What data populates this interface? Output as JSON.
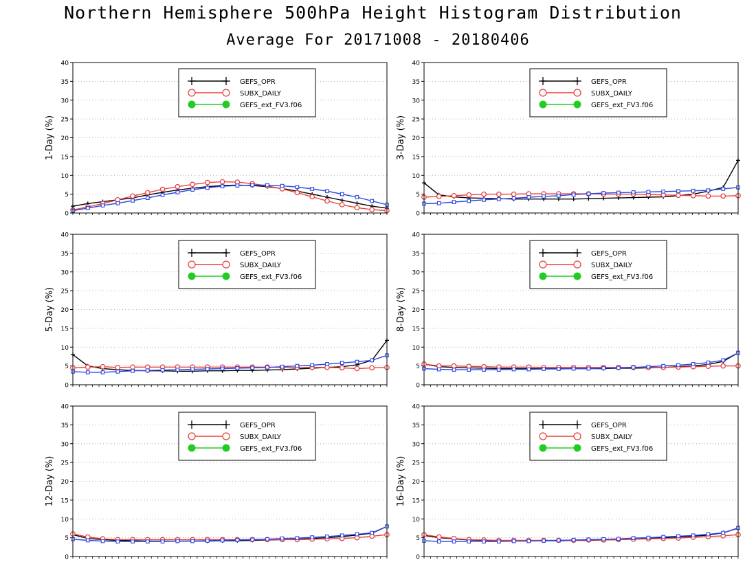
{
  "title": "Northern Hemisphere 500hPa Height Histogram Distribution",
  "subtitle": "Average For 20171008 - 20180406",
  "colors": {
    "GEFS_OPR": "#000000",
    "SUBX_DAILY": "#e8403c",
    "GEFS_ext_FV3.f06": "#2a44e0",
    "legend_green": "#22cc22"
  },
  "legend": [
    {
      "label": "GEFS_OPR",
      "icon": "plus-marker-icon"
    },
    {
      "label": "SUBX_DAILY",
      "icon": "open-circle-marker-icon"
    },
    {
      "label": "GEFS_ext_FV3.f06",
      "icon": "filled-circle-marker-icon"
    }
  ],
  "chart_data": [
    {
      "type": "line",
      "ylabel": "1-Day (%)",
      "ylim": [
        0,
        40
      ],
      "yticks": [
        "0",
        "5",
        "10",
        "15",
        "20",
        "25",
        "30",
        "35",
        "40"
      ],
      "grid": true,
      "legend_position": "top-center",
      "series": [
        {
          "name": "GEFS_OPR",
          "values": [
            1.8,
            2.5,
            3.0,
            3.5,
            4.0,
            4.8,
            5.5,
            6.1,
            6.6,
            7.0,
            7.3,
            7.4,
            7.3,
            7.0,
            6.5,
            5.8,
            5.0,
            4.2,
            3.4,
            2.6,
            1.8,
            1.3
          ]
        },
        {
          "name": "SUBX_DAILY",
          "values": [
            0.8,
            1.6,
            2.5,
            3.5,
            4.5,
            5.4,
            6.3,
            7.0,
            7.6,
            8.1,
            8.3,
            8.2,
            7.8,
            7.2,
            6.4,
            5.4,
            4.3,
            3.2,
            2.2,
            1.4,
            0.9,
            0.6
          ]
        },
        {
          "name": "GEFS_ext_FV3.f06",
          "values": [
            0.6,
            1.3,
            2.0,
            2.6,
            3.3,
            4.0,
            4.8,
            5.5,
            6.2,
            6.7,
            7.1,
            7.3,
            7.4,
            7.4,
            7.2,
            6.9,
            6.4,
            5.8,
            5.0,
            4.2,
            3.2,
            2.2
          ]
        }
      ]
    },
    {
      "type": "line",
      "ylabel": "3-Day (%)",
      "ylim": [
        0,
        40
      ],
      "yticks": [
        "0",
        "5",
        "10",
        "15",
        "20",
        "25",
        "30",
        "35",
        "40"
      ],
      "grid": true,
      "legend_position": "top-center",
      "series": [
        {
          "name": "GEFS_OPR",
          "values": [
            8.0,
            4.8,
            4.3,
            4.0,
            3.9,
            3.8,
            3.7,
            3.7,
            3.7,
            3.7,
            3.7,
            3.8,
            3.9,
            4.0,
            4.1,
            4.2,
            4.3,
            4.6,
            5.0,
            5.8,
            6.8,
            14.0
          ]
        },
        {
          "name": "SUBX_DAILY",
          "values": [
            4.2,
            4.4,
            4.6,
            4.8,
            5.0,
            5.0,
            5.0,
            5.1,
            5.1,
            5.1,
            5.1,
            5.1,
            5.0,
            5.0,
            5.0,
            4.9,
            4.8,
            4.7,
            4.6,
            4.5,
            4.5,
            4.6
          ]
        },
        {
          "name": "GEFS_ext_FV3.f06",
          "values": [
            2.5,
            2.6,
            2.9,
            3.2,
            3.5,
            3.7,
            3.9,
            4.2,
            4.4,
            4.6,
            4.9,
            5.1,
            5.3,
            5.4,
            5.5,
            5.6,
            5.7,
            5.8,
            5.9,
            6.0,
            6.4,
            6.8
          ]
        }
      ]
    },
    {
      "type": "line",
      "ylabel": "5-Day (%)",
      "ylim": [
        0,
        40
      ],
      "yticks": [
        "0",
        "5",
        "10",
        "15",
        "20",
        "25",
        "30",
        "35",
        "40"
      ],
      "grid": true,
      "legend_position": "top-center",
      "series": [
        {
          "name": "GEFS_OPR",
          "values": [
            8.0,
            5.0,
            4.3,
            4.0,
            3.8,
            3.7,
            3.7,
            3.6,
            3.6,
            3.7,
            3.7,
            3.8,
            3.8,
            3.9,
            4.0,
            4.2,
            4.4,
            4.6,
            4.8,
            5.3,
            6.5,
            11.8
          ]
        },
        {
          "name": "SUBX_DAILY",
          "values": [
            4.5,
            4.7,
            4.8,
            4.6,
            4.7,
            4.7,
            4.7,
            4.7,
            4.7,
            4.7,
            4.7,
            4.7,
            4.7,
            4.7,
            4.6,
            4.6,
            4.6,
            4.6,
            4.5,
            4.3,
            4.5,
            4.6
          ]
        },
        {
          "name": "GEFS_ext_FV3.f06",
          "values": [
            3.5,
            3.3,
            3.3,
            3.5,
            3.7,
            3.8,
            3.9,
            4.0,
            4.1,
            4.2,
            4.3,
            4.4,
            4.5,
            4.6,
            4.8,
            5.0,
            5.2,
            5.5,
            5.8,
            6.1,
            6.5,
            7.8
          ]
        }
      ]
    },
    {
      "type": "line",
      "ylabel": "8-Day (%)",
      "ylim": [
        0,
        40
      ],
      "yticks": [
        "0",
        "5",
        "10",
        "15",
        "20",
        "25",
        "30",
        "35",
        "40"
      ],
      "grid": true,
      "legend_position": "top-center",
      "series": [
        {
          "name": "GEFS_OPR",
          "values": [
            5.5,
            4.8,
            4.6,
            4.5,
            4.4,
            4.3,
            4.3,
            4.3,
            4.3,
            4.3,
            4.3,
            4.3,
            4.3,
            4.4,
            4.4,
            4.5,
            4.6,
            4.8,
            5.0,
            5.4,
            6.2,
            8.5
          ]
        },
        {
          "name": "SUBX_DAILY",
          "values": [
            5.5,
            5.0,
            5.0,
            4.9,
            4.8,
            4.7,
            4.7,
            4.7,
            4.6,
            4.6,
            4.6,
            4.6,
            4.6,
            4.6,
            4.6,
            4.6,
            4.6,
            4.7,
            4.8,
            4.9,
            5.0,
            5.0
          ]
        },
        {
          "name": "GEFS_ext_FV3.f06",
          "values": [
            4.3,
            4.1,
            4.0,
            4.0,
            4.0,
            4.0,
            4.1,
            4.1,
            4.2,
            4.2,
            4.3,
            4.3,
            4.4,
            4.5,
            4.6,
            4.8,
            5.0,
            5.2,
            5.5,
            5.9,
            6.5,
            8.5
          ]
        }
      ]
    },
    {
      "type": "line",
      "ylabel": "12-Day (%)",
      "ylim": [
        0,
        40
      ],
      "yticks": [
        "0",
        "5",
        "10",
        "15",
        "20",
        "25",
        "30",
        "35",
        "40"
      ],
      "grid": true,
      "legend_position": "top-center",
      "series": [
        {
          "name": "GEFS_OPR",
          "values": [
            5.8,
            4.8,
            4.5,
            4.3,
            4.2,
            4.1,
            4.1,
            4.1,
            4.1,
            4.1,
            4.2,
            4.2,
            4.3,
            4.4,
            4.5,
            4.6,
            4.8,
            5.0,
            5.3,
            5.7,
            6.2,
            8.0
          ]
        },
        {
          "name": "SUBX_DAILY",
          "values": [
            6.0,
            5.2,
            4.7,
            4.5,
            4.5,
            4.5,
            4.5,
            4.5,
            4.5,
            4.5,
            4.5,
            4.5,
            4.5,
            4.5,
            4.5,
            4.5,
            4.6,
            4.7,
            4.8,
            5.0,
            5.4,
            5.8
          ]
        },
        {
          "name": "GEFS_ext_FV3.f06",
          "values": [
            4.6,
            4.3,
            4.1,
            4.0,
            4.0,
            4.0,
            4.0,
            4.1,
            4.1,
            4.2,
            4.3,
            4.4,
            4.5,
            4.6,
            4.8,
            4.9,
            5.1,
            5.3,
            5.6,
            5.9,
            6.3,
            8.0
          ]
        }
      ]
    },
    {
      "type": "line",
      "ylabel": "16-Day (%)",
      "ylim": [
        0,
        40
      ],
      "yticks": [
        "0",
        "5",
        "10",
        "15",
        "20",
        "25",
        "30",
        "35",
        "40"
      ],
      "grid": true,
      "legend_position": "top-center",
      "series": [
        {
          "name": "GEFS_OPR",
          "values": [
            5.6,
            5.0,
            4.7,
            4.4,
            4.3,
            4.2,
            4.2,
            4.2,
            4.2,
            4.2,
            4.3,
            4.3,
            4.4,
            4.5,
            4.6,
            4.8,
            5.0,
            5.2,
            5.4,
            5.7,
            6.3,
            7.5
          ]
        },
        {
          "name": "SUBX_DAILY",
          "values": [
            5.8,
            5.2,
            4.8,
            4.5,
            4.4,
            4.3,
            4.3,
            4.3,
            4.3,
            4.3,
            4.3,
            4.4,
            4.4,
            4.5,
            4.6,
            4.7,
            4.8,
            4.9,
            5.1,
            5.3,
            5.5,
            5.8
          ]
        },
        {
          "name": "GEFS_ext_FV3.f06",
          "values": [
            4.2,
            4.0,
            4.0,
            4.0,
            4.0,
            4.0,
            4.1,
            4.1,
            4.2,
            4.3,
            4.4,
            4.5,
            4.6,
            4.7,
            4.9,
            5.0,
            5.2,
            5.4,
            5.6,
            5.9,
            6.3,
            7.6
          ]
        }
      ]
    }
  ]
}
